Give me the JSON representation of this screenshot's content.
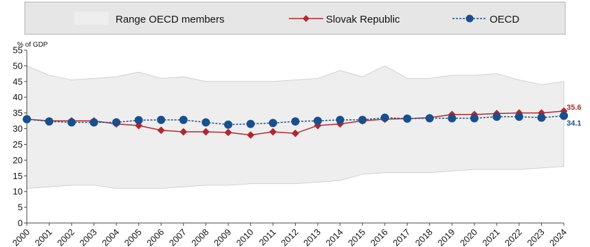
{
  "chart_data": {
    "type": "line",
    "ylabel": "% of GDP",
    "ylim": [
      0,
      55
    ],
    "yticks": [
      0,
      5,
      10,
      15,
      20,
      25,
      30,
      35,
      40,
      45,
      50,
      55
    ],
    "categories": [
      "2000",
      "2001",
      "2002",
      "2003",
      "2004",
      "2005",
      "2006",
      "2007",
      "2008",
      "2009",
      "2010",
      "2011",
      "2012",
      "2013",
      "2014",
      "2015",
      "2016",
      "2017",
      "2018",
      "2019",
      "2020",
      "2021",
      "2022",
      "2023",
      "2024"
    ],
    "range": {
      "name": "Range OECD members",
      "min": [
        11.0,
        11.5,
        12.0,
        12.0,
        11.0,
        11.0,
        11.0,
        11.5,
        12.0,
        12.0,
        12.5,
        12.5,
        12.5,
        13.0,
        13.5,
        15.5,
        16.0,
        16.0,
        16.0,
        16.5,
        17.0,
        17.0,
        17.0,
        17.5,
        18.0
      ],
      "max": [
        50.0,
        47.0,
        45.5,
        46.0,
        46.5,
        48.0,
        46.0,
        46.5,
        45.0,
        45.0,
        45.0,
        45.0,
        45.5,
        46.0,
        48.5,
        46.5,
        50.0,
        46.0,
        46.0,
        47.0,
        47.0,
        47.5,
        45.5,
        44.0,
        45.0
      ],
      "color": "#eeeeee"
    },
    "series": [
      {
        "name": "Slovak Republic",
        "color": "#b3262e",
        "marker": "diamond",
        "values": [
          33.0,
          32.5,
          32.5,
          32.5,
          31.5,
          31.0,
          29.5,
          29.0,
          29.0,
          28.8,
          28.0,
          29.0,
          28.5,
          31.0,
          31.5,
          32.5,
          33.0,
          33.2,
          33.5,
          34.5,
          34.5,
          34.8,
          35.0,
          35.0,
          35.6
        ],
        "end_label": "35.6"
      },
      {
        "name": "OECD",
        "color": "#1a4f8c",
        "marker": "circle",
        "values": [
          33.0,
          32.3,
          32.0,
          32.0,
          32.0,
          32.7,
          32.8,
          32.8,
          32.0,
          31.3,
          31.5,
          31.8,
          32.3,
          32.5,
          32.8,
          32.8,
          33.5,
          33.2,
          33.3,
          33.3,
          33.3,
          33.8,
          33.8,
          33.5,
          34.1
        ],
        "end_label": "34.1"
      }
    ]
  }
}
